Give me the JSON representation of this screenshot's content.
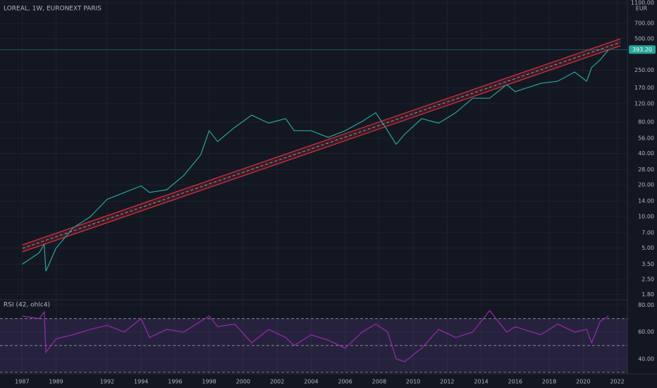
{
  "chart_data": [
    {
      "type": "line",
      "title": "LOREAL, 1W, EURONEXT PARIS",
      "y_unit": "EUR",
      "color": "#26a69a",
      "log_scale": true,
      "grid": true,
      "x": [
        1987.0,
        1988.0,
        1988.3,
        1988.4,
        1989,
        1990,
        1991,
        1992,
        1993,
        1994,
        1994.5,
        1995.5,
        1996.5,
        1997.5,
        1998,
        1998.5,
        1999.5,
        2000.5,
        2001.5,
        2002.5,
        2003,
        2004,
        2005,
        2006,
        2007,
        2007.8,
        2008.5,
        2009,
        2009.5,
        2010.5,
        2011.5,
        2012.5,
        2013.5,
        2014.5,
        2015.5,
        2016,
        2017.5,
        2018.5,
        2019.5,
        2020.2,
        2020.5,
        2021,
        2021.5
      ],
      "values": [
        3.5,
        4.5,
        5.4,
        3.0,
        5,
        7.8,
        9.9,
        14.6,
        16.9,
        19.6,
        17,
        18,
        24.6,
        38.7,
        66,
        52,
        71,
        93,
        78,
        86,
        66,
        66,
        57,
        66,
        81,
        98,
        66,
        49,
        61,
        86,
        78,
        98,
        135,
        135,
        182,
        156,
        187,
        196,
        240,
        196,
        265,
        314,
        393.2
      ],
      "last_label": "393.20",
      "xlim": [
        1985.7,
        2022.6
      ],
      "xticks": [
        1987,
        1989,
        1992,
        1994,
        1996,
        1998,
        2000,
        2002,
        2004,
        2006,
        2008,
        2010,
        2012,
        2014,
        2016,
        2018,
        2020,
        2022
      ],
      "ylim": [
        1.6,
        1170
      ],
      "yticks": [
        {
          "value": 1100,
          "label": "1100.00"
        },
        {
          "value": 700,
          "label": "700.00"
        },
        {
          "value": 500,
          "label": "500.00"
        },
        {
          "value": 250,
          "label": "250.00"
        },
        {
          "value": 170,
          "label": "170.00"
        },
        {
          "value": 120,
          "label": "120.00"
        },
        {
          "value": 80,
          "label": "80.00"
        },
        {
          "value": 56,
          "label": "56.00"
        },
        {
          "value": 40,
          "label": "40.00"
        },
        {
          "value": 28,
          "label": "28.00"
        },
        {
          "value": 20,
          "label": "20.00"
        },
        {
          "value": 14,
          "label": "14.00"
        },
        {
          "value": 10,
          "label": "10.00"
        },
        {
          "value": 7,
          "label": "7.00"
        },
        {
          "value": 5,
          "label": "5.00"
        },
        {
          "value": 3.5,
          "label": "3.50"
        },
        {
          "value": 2.5,
          "label": "2.50"
        },
        {
          "value": 1.8,
          "label": "1.80"
        }
      ]
    },
    {
      "type": "line",
      "title": "RSI (42, ohlc4)",
      "color": "#9c27b0",
      "levels": [
        70,
        50,
        30
      ],
      "x": [
        1987.0,
        1988.0,
        1988.3,
        1988.4,
        1989,
        1990,
        1991,
        1992,
        1993,
        1994,
        1994.5,
        1995.5,
        1996.5,
        1997.5,
        1998,
        1998.5,
        1999.5,
        2000.5,
        2001.5,
        2002.5,
        2003,
        2004,
        2005,
        2006,
        2007,
        2007.8,
        2008.5,
        2009,
        2009.5,
        2010.5,
        2011.5,
        2012.5,
        2013.5,
        2014.5,
        2015.5,
        2016,
        2017.5,
        2018.5,
        2019.5,
        2020.2,
        2020.5,
        2021,
        2021.5
      ],
      "values": [
        72,
        70,
        75,
        45,
        55,
        58,
        62,
        65,
        60,
        70,
        56,
        62,
        60,
        68,
        72,
        64,
        66,
        52,
        62,
        56,
        50,
        58,
        54,
        48,
        60,
        66,
        60,
        40,
        38,
        48,
        62,
        56,
        60,
        76,
        60,
        64,
        58,
        66,
        60,
        62,
        52,
        68,
        72
      ],
      "ylim": [
        28.9,
        84
      ],
      "yticks": [
        {
          "value": 80,
          "label": "80.00"
        },
        {
          "value": 60,
          "label": "60.00"
        },
        {
          "value": 40,
          "label": "40.00"
        }
      ]
    }
  ]
}
